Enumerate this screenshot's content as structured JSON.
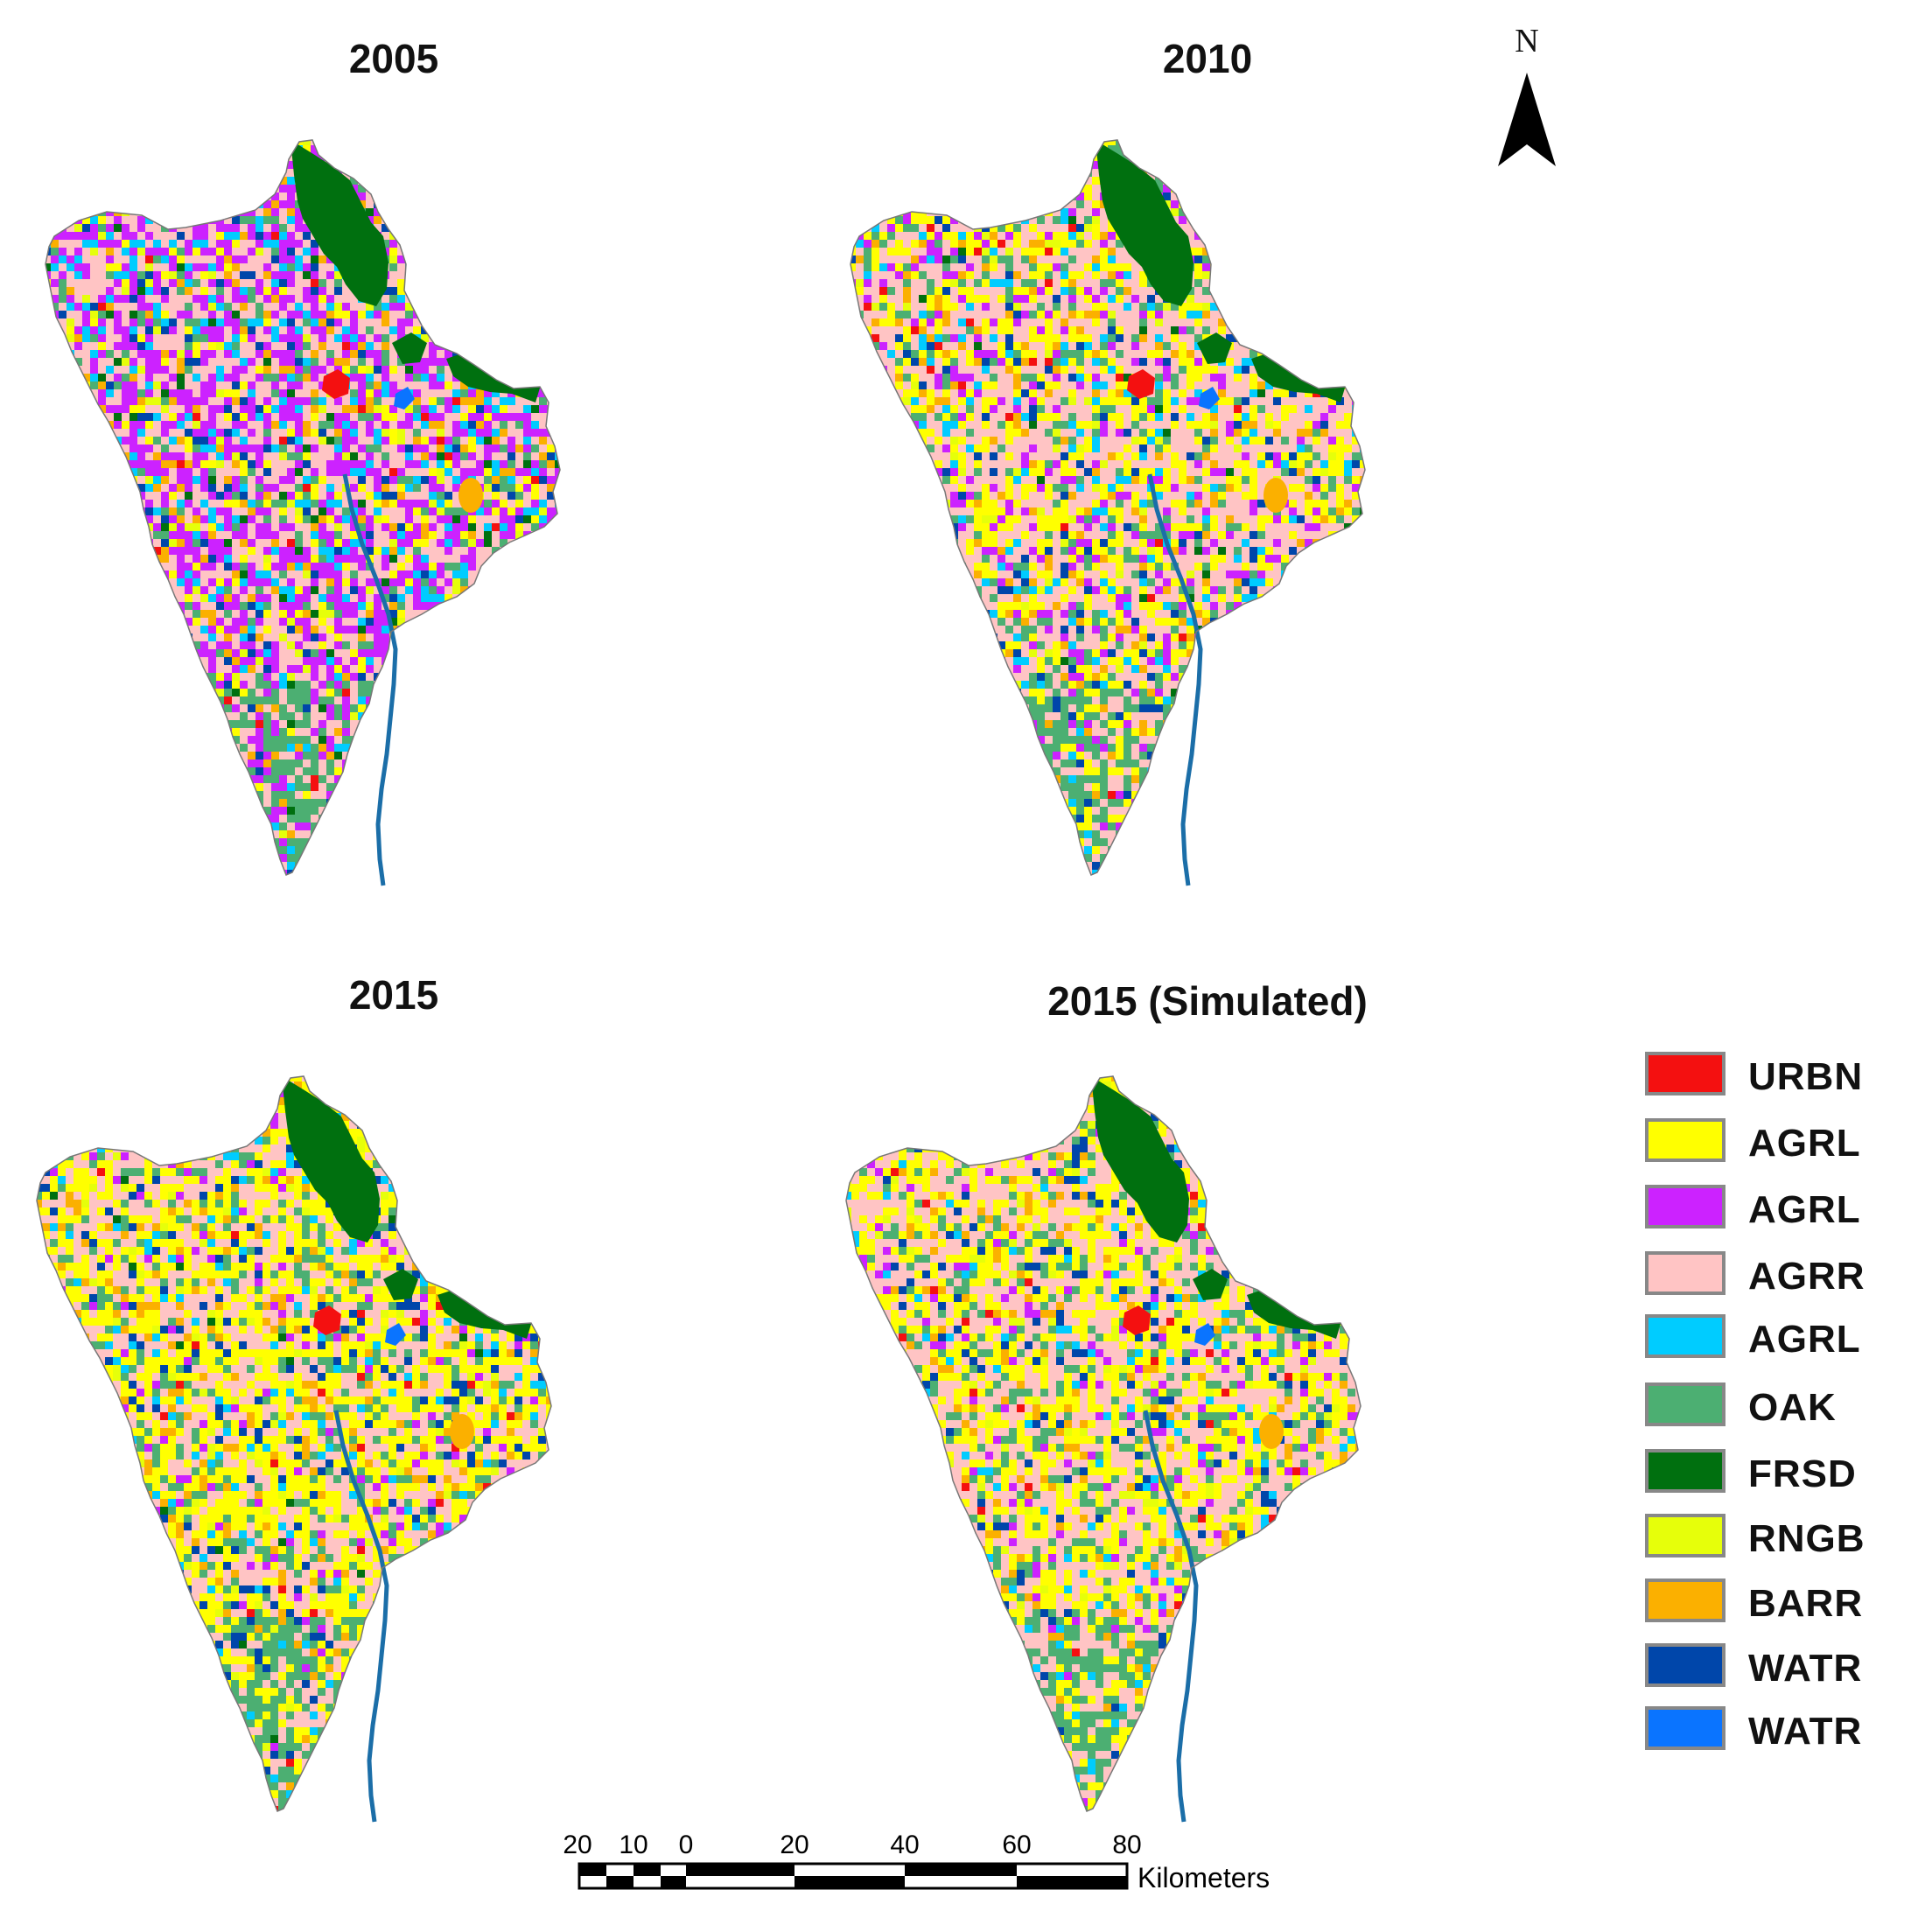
{
  "panels": [
    {
      "title": "2005",
      "variant": "2005"
    },
    {
      "title": "2010",
      "variant": "2010"
    },
    {
      "title": "2015",
      "variant": "2015"
    },
    {
      "title": "2015 (Simulated)",
      "variant": "2015sim"
    }
  ],
  "north_arrow": {
    "letter": "N"
  },
  "legend": [
    {
      "label": "URBN",
      "color": "#f41010"
    },
    {
      "label": "AGRL",
      "color": "#ffff00"
    },
    {
      "label": "AGRL",
      "color": "#cc22ff"
    },
    {
      "label": "AGRR",
      "color": "#ffc4c4"
    },
    {
      "label": "AGRL",
      "color": "#00ccff"
    },
    {
      "label": "OAK",
      "color": "#4caf72"
    },
    {
      "label": "FRSD",
      "color": "#00700f"
    },
    {
      "label": "RNGB",
      "color": "#e6ff0a"
    },
    {
      "label": "BARR",
      "color": "#fbb000"
    },
    {
      "label": "WATR",
      "color": "#0046aa"
    },
    {
      "label": "WATR",
      "color": "#0a74ff"
    }
  ],
  "scale_bar": {
    "ticks": [
      "20",
      "10",
      "0",
      "20",
      "40",
      "60",
      "80"
    ],
    "unit": "Kilometers"
  }
}
